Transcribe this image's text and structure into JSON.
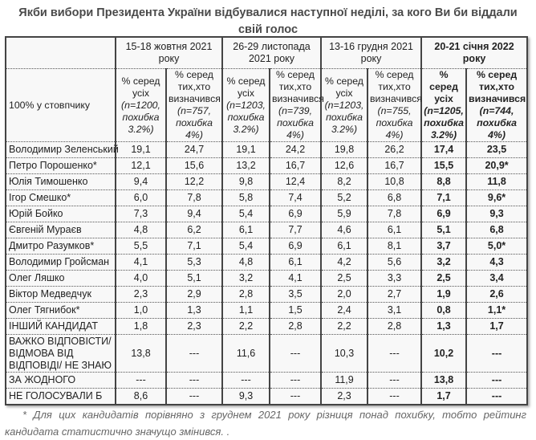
{
  "title": {
    "line1": "Якби вибори Президента України відбувалися наступної неділі, за кого Ви би віддали",
    "line2": "свій голос"
  },
  "table": {
    "periods": [
      {
        "label": "15-18 жовтня 2021 року",
        "bold": false
      },
      {
        "label": "26-29 листопада 2021 року",
        "bold": false
      },
      {
        "label": "13-16 грудня 2021 року",
        "bold": false
      },
      {
        "label": "20-21 січня 2022 року",
        "bold": true
      }
    ],
    "row_header_label": "100% у стовпчику",
    "subheaders": [
      {
        "main": "% серед усіх",
        "note": "(n=1200, похибка 3.2%)"
      },
      {
        "main": "% серед тих,хто визначився",
        "note": "(n=757, похибка 4%)"
      },
      {
        "main": "% серед усіх",
        "note": "(n=1203, похибка 3.2%)"
      },
      {
        "main": "% серед тих,хто визначився",
        "note": "(n=739, похибка 4%)"
      },
      {
        "main": "% серед усіх",
        "note": "(n=1203, похибка 3.2%)"
      },
      {
        "main": "% серед тих,хто визначився",
        "note": "(n=755, похибка 4%)"
      },
      {
        "main": "% серед усіх",
        "note": "(n=1205, похибка 3.2%)"
      },
      {
        "main": "% серед тих,хто визначився",
        "note": "(n=744, похибка 4%)"
      }
    ],
    "rows": [
      {
        "name": "Володимир Зеленський",
        "values": [
          "19,1",
          "24,7",
          "19,1",
          "24,2",
          "19,8",
          "26,2",
          "17,4",
          "23,5"
        ]
      },
      {
        "name": "Петро Порошенко*",
        "values": [
          "12,1",
          "15,6",
          "13,2",
          "16,7",
          "12,6",
          "16,7",
          "15,5",
          "20,9*"
        ]
      },
      {
        "name": "Юлія Тимошенко",
        "values": [
          "9,4",
          "12,2",
          "9,8",
          "12,4",
          "8,2",
          "10,8",
          "8,8",
          "11,8"
        ]
      },
      {
        "name": "Ігор Смешко*",
        "values": [
          "6,0",
          "7,8",
          "5,8",
          "7,4",
          "5,2",
          "6,8",
          "7,1",
          "9,6*"
        ]
      },
      {
        "name": "Юрій Бойко",
        "values": [
          "7,3",
          "9,4",
          "5,4",
          "6,9",
          "5,9",
          "7,8",
          "6,9",
          "9,3"
        ]
      },
      {
        "name": "Євгеній Мураєв",
        "values": [
          "4,8",
          "6,2",
          "6,1",
          "7,7",
          "4,6",
          "6,1",
          "5,1",
          "6,8"
        ]
      },
      {
        "name": "Дмитро Разумков*",
        "values": [
          "5,5",
          "7,1",
          "5,4",
          "6,9",
          "6,1",
          "8,1",
          "3,7",
          "5,0*"
        ]
      },
      {
        "name": "Володимир Гройсман",
        "values": [
          "4,1",
          "5,3",
          "4,8",
          "6,1",
          "4,2",
          "5,6",
          "3,2",
          "4,3"
        ]
      },
      {
        "name": "Олег Ляшко",
        "values": [
          "4,0",
          "5,1",
          "3,2",
          "4,1",
          "2,5",
          "3,3",
          "2,5",
          "3,4"
        ]
      },
      {
        "name": "Віктор Медведчук",
        "values": [
          "2,3",
          "2,9",
          "2,8",
          "3,5",
          "2,0",
          "2,7",
          "1,9",
          "2,6"
        ]
      },
      {
        "name": "Олег Тягнибок*",
        "values": [
          "1,0",
          "1,3",
          "1,1",
          "1,5",
          "2,4",
          "3,1",
          "0,8",
          "1,1*"
        ]
      },
      {
        "name": "ІНШИЙ КАНДИДАТ",
        "values": [
          "1,8",
          "2,3",
          "2,2",
          "2,8",
          "2,2",
          "2,8",
          "1,3",
          "1,7"
        ]
      },
      {
        "name": "ВАЖКО ВІДПОВІСТИ/ ВІДМОВА ВІД ВІДПОВІДІ/ НЕ ЗНАЮ",
        "values": [
          "13,8",
          "---",
          "11,6",
          "---",
          "10,3",
          "---",
          "10,2",
          "---"
        ]
      },
      {
        "name": "ЗА ЖОДНОГО",
        "values": [
          "---",
          "---",
          "---",
          "---",
          "11,9",
          "---",
          "13,8",
          "---"
        ]
      },
      {
        "name": "НЕ ГОЛОСУВАЛИ Б",
        "values": [
          "8,6",
          "---",
          "9,3",
          "---",
          "2,3",
          "---",
          "1,7",
          "---"
        ]
      }
    ]
  },
  "footnote": {
    "line1": "* Для цих кандидатів порівняно з груднем 2021 року різниця понад похибку, тобто рейтинг",
    "line2": "кандидата статистично значущо змінився. ."
  }
}
